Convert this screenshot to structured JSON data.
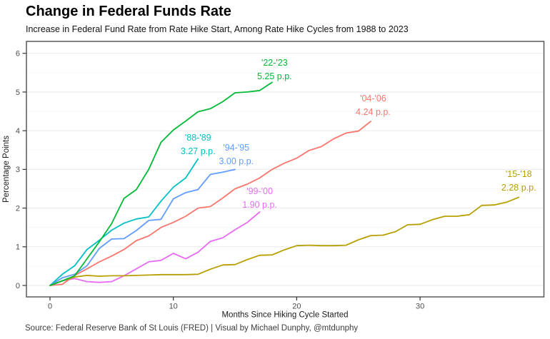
{
  "page": {
    "title": "Change in Federal Funds Rate",
    "subtitle": "Increase in Federal Fund Rate from Rate Hike Start, Among Rate Hike Cycles from 1988 to 2023",
    "source": "Source: Federal Reserve Bank of St Louis (FRED) | Visual by Michael Dunphy, @mtdunphy"
  },
  "colors": {
    "background": "#FFFFFF",
    "grid_major": "#E9E9E9",
    "grid_minor": "#F6F6F6",
    "panel_border": "#58585B",
    "axis_tick": "#333333",
    "tick_label": "#4D4D4D",
    "axis_title": "#1A1A1A"
  },
  "chart_data": {
    "type": "line",
    "title": "Change in Federal Funds Rate",
    "subtitle": "Increase in Federal Fund Rate from Rate Hike Start, Among Rate Hike Cycles from 1988 to 2023",
    "xlabel": "Months Since Hiking Cycle Started",
    "ylabel": "Percentage Points",
    "x_unit": "months since hiking cycle started",
    "y_unit": "percentage points",
    "xlim": [
      -1.9,
      40.0
    ],
    "ylim": [
      -0.3,
      6.3
    ],
    "xticks": [
      0,
      10,
      20,
      30
    ],
    "yticks": [
      0,
      1,
      2,
      3,
      4,
      5,
      6
    ],
    "grid": {
      "horizontal_major_step": 1.0,
      "horizontal_minor_step": 0.5,
      "vertical": false
    },
    "legend": "direct line labels (cycle name + total increase)",
    "series": [
      {
        "id": "88-89",
        "name": "'88-'89",
        "end_label": "3.27 p.p.",
        "color": "#00BFC4",
        "month_start": 0,
        "month_step": 1,
        "values": [
          0,
          0.29,
          0.51,
          0.93,
          1.17,
          1.43,
          1.61,
          1.72,
          1.77,
          2.18,
          2.54,
          2.78,
          3.27
        ],
        "label_pos": {
          "month": 12.0,
          "value": 3.66
        }
      },
      {
        "id": "94-95",
        "name": "'94-'95",
        "end_label": "3.00 p.p.",
        "color": "#619CFF",
        "month_start": 0,
        "month_step": 1,
        "values": [
          0,
          0.2,
          0.29,
          0.51,
          0.96,
          1.2,
          1.21,
          1.42,
          1.68,
          1.71,
          2.24,
          2.4,
          2.48,
          2.87,
          2.93,
          3.0
        ],
        "label_pos": {
          "month": 15.1,
          "value": 3.4
        }
      },
      {
        "id": "99-00",
        "name": "'99-'00",
        "end_label": "1.90 p.p.",
        "color": "#E76BF3",
        "month_start": 0,
        "month_step": 1,
        "values": [
          0,
          0.12,
          0.18,
          0.1,
          0.08,
          0.1,
          0.25,
          0.43,
          0.61,
          0.65,
          0.83,
          0.69,
          0.86,
          1.14,
          1.23,
          1.44,
          1.63,
          1.9
        ],
        "label_pos": {
          "month": 17.0,
          "value": 2.28
        }
      },
      {
        "id": "04-06",
        "name": "'04-'06",
        "end_label": "4.24 p.p.",
        "color": "#F8766D",
        "month_start": 0,
        "month_step": 1,
        "values": [
          0,
          0.03,
          0.26,
          0.43,
          0.61,
          0.76,
          0.93,
          1.16,
          1.28,
          1.5,
          1.63,
          1.79,
          2.0,
          2.04,
          2.26,
          2.5,
          2.62,
          2.78,
          3.0,
          3.16,
          3.29,
          3.49,
          3.59,
          3.79,
          3.94,
          3.99,
          4.24
        ],
        "label_pos": {
          "month": 26.2,
          "value": 4.68
        }
      },
      {
        "id": "15-18",
        "name": "'15-'18",
        "end_label": "2.28 p.p.",
        "color": "#B79F00",
        "month_start": 0,
        "month_step": 1,
        "values": [
          0,
          0.12,
          0.22,
          0.26,
          0.24,
          0.25,
          0.25,
          0.26,
          0.27,
          0.28,
          0.28,
          0.28,
          0.29,
          0.42,
          0.53,
          0.54,
          0.67,
          0.78,
          0.79,
          0.92,
          1.03,
          1.04,
          1.03,
          1.03,
          1.04,
          1.18,
          1.29,
          1.3,
          1.39,
          1.57,
          1.58,
          1.7,
          1.79,
          1.79,
          1.83,
          2.07,
          2.08,
          2.15,
          2.28
        ],
        "label_pos": {
          "month": 38.0,
          "value": 2.72
        }
      },
      {
        "id": "22-23",
        "name": "'22-'23",
        "end_label": "5.25 p.p.",
        "color": "#00BA38",
        "month_start": 0,
        "month_step": 1,
        "values": [
          0,
          0.12,
          0.25,
          0.69,
          1.13,
          1.6,
          2.25,
          2.48,
          3.0,
          3.7,
          4.02,
          4.25,
          4.49,
          4.57,
          4.75,
          4.98,
          5.0,
          5.04,
          5.25
        ],
        "label_pos": {
          "month": 18.2,
          "value": 5.6
        }
      }
    ]
  }
}
